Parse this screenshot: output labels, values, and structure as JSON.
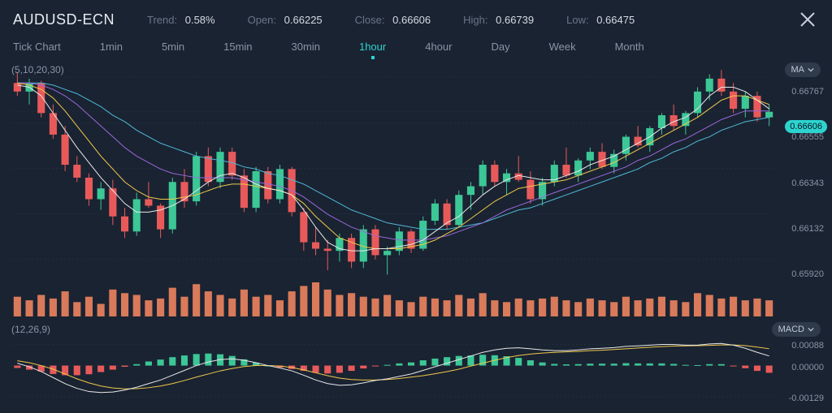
{
  "header": {
    "symbol": "AUDUSD-ECN",
    "trend_label": "Trend:",
    "trend_val": "0.58%",
    "open_label": "Open:",
    "open_val": "0.66225",
    "close_label": "Close:",
    "close_val": "0.66606",
    "high_label": "High:",
    "high_val": "0.66739",
    "low_label": "Low:",
    "low_val": "0.66475"
  },
  "timeframes": {
    "items": [
      "Tick Chart",
      "1min",
      "5min",
      "15min",
      "30min",
      "1hour",
      "4hour",
      "Day",
      "Week",
      "Month"
    ],
    "active_index": 5
  },
  "indicator_buttons": {
    "ma": "MA",
    "macd": "MACD"
  },
  "ma": {
    "params_text": "(5,10,20,30)",
    "colors": {
      "ma5": "#e8e8e8",
      "ma10": "#f0c94a",
      "ma20": "#9968d9",
      "ma30": "#4fb8d6"
    }
  },
  "price_chart": {
    "type": "candlestick",
    "background": "#1a2332",
    "up_color": "#3cc796",
    "down_color": "#e85a5a",
    "grid_color": "#2a3442",
    "ylim": [
      0.6584,
      0.6682
    ],
    "yticks": [
      0.6592,
      0.66132,
      0.66343,
      0.66555,
      0.66767
    ],
    "ytick_labels": [
      "0.65920",
      "0.66132",
      "0.66343",
      "0.66555",
      "0.66767"
    ],
    "current_price": 0.66606,
    "current_price_label": "0.66606",
    "data": [
      {
        "o": 0.6674,
        "h": 0.6679,
        "l": 0.6668,
        "c": 0.667,
        "v": 22
      },
      {
        "o": 0.667,
        "h": 0.6676,
        "l": 0.6664,
        "c": 0.6674,
        "v": 18
      },
      {
        "o": 0.6674,
        "h": 0.6675,
        "l": 0.6658,
        "c": 0.666,
        "v": 24
      },
      {
        "o": 0.666,
        "h": 0.6664,
        "l": 0.6648,
        "c": 0.665,
        "v": 20
      },
      {
        "o": 0.665,
        "h": 0.6654,
        "l": 0.6633,
        "c": 0.6636,
        "v": 28
      },
      {
        "o": 0.6636,
        "h": 0.664,
        "l": 0.6628,
        "c": 0.663,
        "v": 16
      },
      {
        "o": 0.663,
        "h": 0.6632,
        "l": 0.6617,
        "c": 0.662,
        "v": 22
      },
      {
        "o": 0.662,
        "h": 0.6628,
        "l": 0.6615,
        "c": 0.6625,
        "v": 14
      },
      {
        "o": 0.6625,
        "h": 0.6629,
        "l": 0.6608,
        "c": 0.6612,
        "v": 30
      },
      {
        "o": 0.6612,
        "h": 0.6616,
        "l": 0.6602,
        "c": 0.6605,
        "v": 26
      },
      {
        "o": 0.6605,
        "h": 0.6623,
        "l": 0.6603,
        "c": 0.662,
        "v": 24
      },
      {
        "o": 0.662,
        "h": 0.6628,
        "l": 0.6616,
        "c": 0.6617,
        "v": 18
      },
      {
        "o": 0.6617,
        "h": 0.6618,
        "l": 0.6602,
        "c": 0.6606,
        "v": 20
      },
      {
        "o": 0.6606,
        "h": 0.663,
        "l": 0.6604,
        "c": 0.6628,
        "v": 32
      },
      {
        "o": 0.6628,
        "h": 0.6634,
        "l": 0.6616,
        "c": 0.6619,
        "v": 22
      },
      {
        "o": 0.6619,
        "h": 0.6642,
        "l": 0.6617,
        "c": 0.664,
        "v": 36
      },
      {
        "o": 0.664,
        "h": 0.6644,
        "l": 0.6626,
        "c": 0.6628,
        "v": 28
      },
      {
        "o": 0.6628,
        "h": 0.6644,
        "l": 0.6625,
        "c": 0.6642,
        "v": 24
      },
      {
        "o": 0.6642,
        "h": 0.6644,
        "l": 0.6629,
        "c": 0.6631,
        "v": 20
      },
      {
        "o": 0.6631,
        "h": 0.6634,
        "l": 0.6614,
        "c": 0.6616,
        "v": 30
      },
      {
        "o": 0.6616,
        "h": 0.6635,
        "l": 0.6614,
        "c": 0.6633,
        "v": 22
      },
      {
        "o": 0.6633,
        "h": 0.6635,
        "l": 0.6618,
        "c": 0.662,
        "v": 24
      },
      {
        "o": 0.662,
        "h": 0.6636,
        "l": 0.6618,
        "c": 0.6634,
        "v": 18
      },
      {
        "o": 0.6634,
        "h": 0.6635,
        "l": 0.6612,
        "c": 0.6614,
        "v": 28
      },
      {
        "o": 0.6614,
        "h": 0.6616,
        "l": 0.6596,
        "c": 0.66,
        "v": 34
      },
      {
        "o": 0.66,
        "h": 0.6607,
        "l": 0.6594,
        "c": 0.6597,
        "v": 38
      },
      {
        "o": 0.6597,
        "h": 0.6601,
        "l": 0.6587,
        "c": 0.6596,
        "v": 30
      },
      {
        "o": 0.6596,
        "h": 0.6604,
        "l": 0.6591,
        "c": 0.6602,
        "v": 24
      },
      {
        "o": 0.6602,
        "h": 0.6604,
        "l": 0.6588,
        "c": 0.6591,
        "v": 26
      },
      {
        "o": 0.6591,
        "h": 0.6608,
        "l": 0.6588,
        "c": 0.6606,
        "v": 22
      },
      {
        "o": 0.6606,
        "h": 0.6608,
        "l": 0.6592,
        "c": 0.6594,
        "v": 20
      },
      {
        "o": 0.6594,
        "h": 0.6598,
        "l": 0.6585,
        "c": 0.6596,
        "v": 24
      },
      {
        "o": 0.6596,
        "h": 0.6607,
        "l": 0.6594,
        "c": 0.6605,
        "v": 18
      },
      {
        "o": 0.6605,
        "h": 0.6606,
        "l": 0.6595,
        "c": 0.6597,
        "v": 16
      },
      {
        "o": 0.6597,
        "h": 0.6612,
        "l": 0.6596,
        "c": 0.661,
        "v": 22
      },
      {
        "o": 0.661,
        "h": 0.662,
        "l": 0.6608,
        "c": 0.6618,
        "v": 20
      },
      {
        "o": 0.6618,
        "h": 0.662,
        "l": 0.6606,
        "c": 0.6608,
        "v": 18
      },
      {
        "o": 0.6608,
        "h": 0.6624,
        "l": 0.6607,
        "c": 0.6622,
        "v": 24
      },
      {
        "o": 0.6622,
        "h": 0.6628,
        "l": 0.6615,
        "c": 0.6626,
        "v": 20
      },
      {
        "o": 0.6626,
        "h": 0.6638,
        "l": 0.6622,
        "c": 0.6636,
        "v": 26
      },
      {
        "o": 0.6636,
        "h": 0.6638,
        "l": 0.6626,
        "c": 0.6628,
        "v": 18
      },
      {
        "o": 0.6628,
        "h": 0.6634,
        "l": 0.6622,
        "c": 0.6632,
        "v": 16
      },
      {
        "o": 0.6632,
        "h": 0.664,
        "l": 0.6628,
        "c": 0.6629,
        "v": 20
      },
      {
        "o": 0.6629,
        "h": 0.6633,
        "l": 0.6618,
        "c": 0.662,
        "v": 18
      },
      {
        "o": 0.662,
        "h": 0.663,
        "l": 0.6617,
        "c": 0.6628,
        "v": 20
      },
      {
        "o": 0.6628,
        "h": 0.6638,
        "l": 0.6626,
        "c": 0.6636,
        "v": 22
      },
      {
        "o": 0.6636,
        "h": 0.6644,
        "l": 0.663,
        "c": 0.6631,
        "v": 18
      },
      {
        "o": 0.6631,
        "h": 0.6639,
        "l": 0.6628,
        "c": 0.6638,
        "v": 16
      },
      {
        "o": 0.6638,
        "h": 0.6644,
        "l": 0.6634,
        "c": 0.6642,
        "v": 20
      },
      {
        "o": 0.6642,
        "h": 0.6646,
        "l": 0.6634,
        "c": 0.6635,
        "v": 18
      },
      {
        "o": 0.6635,
        "h": 0.6643,
        "l": 0.6632,
        "c": 0.6641,
        "v": 16
      },
      {
        "o": 0.6641,
        "h": 0.665,
        "l": 0.6638,
        "c": 0.6649,
        "v": 22
      },
      {
        "o": 0.6649,
        "h": 0.6654,
        "l": 0.6644,
        "c": 0.6645,
        "v": 18
      },
      {
        "o": 0.6645,
        "h": 0.6654,
        "l": 0.6642,
        "c": 0.6653,
        "v": 20
      },
      {
        "o": 0.6653,
        "h": 0.666,
        "l": 0.665,
        "c": 0.6659,
        "v": 22
      },
      {
        "o": 0.6659,
        "h": 0.6664,
        "l": 0.6652,
        "c": 0.6654,
        "v": 18
      },
      {
        "o": 0.6654,
        "h": 0.6661,
        "l": 0.665,
        "c": 0.666,
        "v": 16
      },
      {
        "o": 0.666,
        "h": 0.6672,
        "l": 0.6658,
        "c": 0.667,
        "v": 26
      },
      {
        "o": 0.667,
        "h": 0.6678,
        "l": 0.6666,
        "c": 0.6676,
        "v": 24
      },
      {
        "o": 0.6676,
        "h": 0.668,
        "l": 0.6668,
        "c": 0.667,
        "v": 20
      },
      {
        "o": 0.667,
        "h": 0.6674,
        "l": 0.666,
        "c": 0.6662,
        "v": 22
      },
      {
        "o": 0.6662,
        "h": 0.667,
        "l": 0.6658,
        "c": 0.6668,
        "v": 18
      },
      {
        "o": 0.6668,
        "h": 0.667,
        "l": 0.6656,
        "c": 0.6658,
        "v": 20
      },
      {
        "o": 0.6658,
        "h": 0.6664,
        "l": 0.6654,
        "c": 0.66606,
        "v": 18
      }
    ],
    "ma_lines": {
      "ma5": [
        0.6673,
        0.6672,
        0.6668,
        0.666,
        0.6652,
        0.6644,
        0.6637,
        0.663,
        0.6624,
        0.6618,
        0.6614,
        0.6614,
        0.6615,
        0.6617,
        0.662,
        0.6624,
        0.6628,
        0.6631,
        0.6632,
        0.663,
        0.6627,
        0.6625,
        0.6624,
        0.6622,
        0.6615,
        0.6607,
        0.66,
        0.6597,
        0.6596,
        0.6596,
        0.6597,
        0.6597,
        0.6598,
        0.6599,
        0.6601,
        0.6605,
        0.6609,
        0.6612,
        0.6617,
        0.6622,
        0.6626,
        0.6629,
        0.6631,
        0.663,
        0.6629,
        0.6629,
        0.6631,
        0.6633,
        0.6636,
        0.6638,
        0.664,
        0.6643,
        0.6646,
        0.6649,
        0.6653,
        0.6656,
        0.6658,
        0.6662,
        0.6668,
        0.6672,
        0.6672,
        0.667,
        0.6666,
        0.6662
      ],
      "ma10": [
        0.6674,
        0.6673,
        0.6671,
        0.6667,
        0.6661,
        0.6654,
        0.6647,
        0.664,
        0.6634,
        0.6628,
        0.6624,
        0.6621,
        0.662,
        0.662,
        0.6621,
        0.6622,
        0.6624,
        0.6626,
        0.6627,
        0.6627,
        0.6626,
        0.6625,
        0.6624,
        0.6622,
        0.6618,
        0.6612,
        0.6607,
        0.6602,
        0.66,
        0.6598,
        0.6597,
        0.6597,
        0.6597,
        0.6598,
        0.6599,
        0.6601,
        0.6604,
        0.6607,
        0.6611,
        0.6615,
        0.6619,
        0.6622,
        0.6625,
        0.6626,
        0.6627,
        0.6628,
        0.6629,
        0.6631,
        0.6633,
        0.6635,
        0.6637,
        0.664,
        0.6643,
        0.6646,
        0.6649,
        0.6652,
        0.6655,
        0.6658,
        0.6662,
        0.6666,
        0.6668,
        0.6668,
        0.6666,
        0.6664
      ],
      "ma20": [
        0.6674,
        0.6674,
        0.6673,
        0.6671,
        0.6668,
        0.6664,
        0.6659,
        0.6654,
        0.6649,
        0.6644,
        0.664,
        0.6637,
        0.6634,
        0.6632,
        0.6631,
        0.663,
        0.663,
        0.663,
        0.663,
        0.6629,
        0.6628,
        0.6627,
        0.6626,
        0.6624,
        0.6621,
        0.6617,
        0.6613,
        0.661,
        0.6607,
        0.6605,
        0.6603,
        0.6602,
        0.6601,
        0.6601,
        0.6601,
        0.6602,
        0.6603,
        0.6605,
        0.6607,
        0.6609,
        0.6612,
        0.6615,
        0.6617,
        0.6619,
        0.6621,
        0.6623,
        0.6625,
        0.6627,
        0.6629,
        0.6631,
        0.6633,
        0.6635,
        0.6638,
        0.664,
        0.6643,
        0.6646,
        0.6648,
        0.6651,
        0.6654,
        0.6657,
        0.6659,
        0.6661,
        0.6661,
        0.6661
      ],
      "ma30": [
        0.6674,
        0.6674,
        0.6674,
        0.6673,
        0.6671,
        0.6669,
        0.6666,
        0.6663,
        0.6659,
        0.6656,
        0.6652,
        0.6649,
        0.6646,
        0.6644,
        0.6642,
        0.664,
        0.6639,
        0.6638,
        0.6637,
        0.6635,
        0.6634,
        0.6632,
        0.6631,
        0.6629,
        0.6627,
        0.6624,
        0.6621,
        0.6618,
        0.6615,
        0.6613,
        0.6611,
        0.6609,
        0.6608,
        0.6607,
        0.6606,
        0.6606,
        0.6606,
        0.6607,
        0.6608,
        0.6609,
        0.6611,
        0.6613,
        0.6615,
        0.6616,
        0.6618,
        0.662,
        0.6622,
        0.6624,
        0.6626,
        0.6628,
        0.663,
        0.6632,
        0.6634,
        0.6637,
        0.6639,
        0.6642,
        0.6644,
        0.6647,
        0.6649,
        0.6652,
        0.6654,
        0.6656,
        0.6657,
        0.6658
      ]
    }
  },
  "volume_color": "#d97a5a",
  "macd": {
    "params_text": "(12,26,9)",
    "macd_color": "#e8e8e8",
    "signal_color": "#f0c94a",
    "hist_up": "#3cc796",
    "hist_down": "#e85a5a",
    "ylim": [
      -0.0015,
      0.0012
    ],
    "yticks": [
      -0.00129,
      0.0,
      0.00088
    ],
    "ytick_labels": [
      "-0.00129",
      "0.00000",
      "0.00088"
    ],
    "macd_line": [
      0.0001,
      -5e-05,
      -0.00025,
      -0.0005,
      -0.00075,
      -0.00095,
      -0.00108,
      -0.00112,
      -0.0011,
      -0.00102,
      -0.0009,
      -0.00075,
      -0.0006,
      -0.0004,
      -0.0002,
      0.0,
      0.00015,
      0.00025,
      0.00028,
      0.00022,
      0.00012,
      0.0,
      -0.0001,
      -0.00022,
      -0.0004,
      -0.0006,
      -0.00075,
      -0.00082,
      -0.0008,
      -0.00072,
      -0.00062,
      -0.00055,
      -0.00045,
      -0.00035,
      -0.0002,
      -5e-05,
      0.0001,
      0.00025,
      0.0004,
      0.00055,
      0.00065,
      0.00072,
      0.00074,
      0.0007,
      0.00065,
      0.00062,
      0.00062,
      0.00065,
      0.0007,
      0.00072,
      0.00075,
      0.0008,
      0.00082,
      0.00085,
      0.00088,
      0.00088,
      0.00085,
      0.00085,
      0.0009,
      0.00092,
      0.00085,
      0.00072,
      0.00055,
      0.0004
    ],
    "signal_line": [
      0.0002,
      0.00012,
      0.0,
      -0.00015,
      -0.00035,
      -0.00055,
      -0.00072,
      -0.00085,
      -0.00093,
      -0.00097,
      -0.00096,
      -0.00092,
      -0.00085,
      -0.00075,
      -0.00062,
      -0.00048,
      -0.00035,
      -0.00022,
      -0.00012,
      -4e-05,
      0.0,
      0.0,
      -2e-05,
      -8e-05,
      -0.00018,
      -0.0003,
      -0.00042,
      -0.00052,
      -0.00058,
      -0.0006,
      -0.0006,
      -0.00058,
      -0.00054,
      -0.00048,
      -0.00042,
      -0.00034,
      -0.00025,
      -0.00015,
      -2e-05,
      0.0001,
      0.00022,
      0.00033,
      0.00042,
      0.00048,
      0.00052,
      0.00055,
      0.00057,
      0.00059,
      0.00062,
      0.00064,
      0.00067,
      0.0007,
      0.00073,
      0.00076,
      0.00079,
      0.00081,
      0.00082,
      0.00083,
      0.00084,
      0.00086,
      0.00086,
      0.00083,
      0.00077,
      0.0007
    ],
    "histogram": [
      -0.0001,
      -0.00017,
      -0.00025,
      -0.00035,
      -0.0004,
      -0.0004,
      -0.00036,
      -0.00027,
      -0.00017,
      -5e-05,
      6e-05,
      0.00017,
      0.00025,
      0.00035,
      0.00042,
      0.00048,
      0.0005,
      0.00047,
      0.0004,
      0.00026,
      0.00012,
      0.0,
      -8e-05,
      -0.00014,
      -0.00022,
      -0.0003,
      -0.00033,
      -0.0003,
      -0.00022,
      -0.00012,
      -2e-05,
      3e-05,
      9e-05,
      0.00013,
      0.00022,
      0.00029,
      0.00035,
      0.0004,
      0.00042,
      0.00045,
      0.00043,
      0.00039,
      0.00032,
      0.00022,
      0.00013,
      7e-05,
      5e-05,
      6e-05,
      8e-05,
      8e-05,
      8e-05,
      0.0001,
      9e-05,
      9e-05,
      9e-05,
      7e-05,
      3e-05,
      2e-05,
      6e-05,
      6e-05,
      -1e-05,
      -0.00011,
      -0.00022,
      -0.0003
    ]
  }
}
